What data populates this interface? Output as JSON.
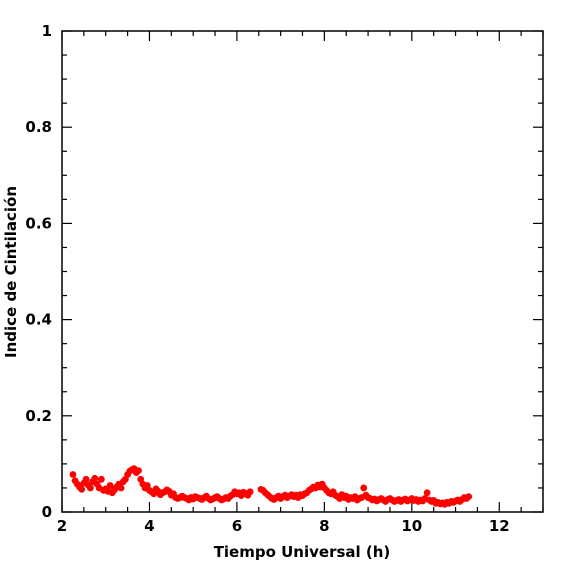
{
  "chart_data": {
    "type": "scatter",
    "xlabel": "Tiempo Universal (h)",
    "ylabel": "Indice de Cintilación",
    "xlim": [
      2,
      13
    ],
    "ylim": [
      0,
      1
    ],
    "x_ticks": [
      2,
      4,
      6,
      8,
      10,
      12
    ],
    "x_tick_labels": [
      "2",
      "4",
      "6",
      "8",
      "10",
      "12"
    ],
    "y_ticks": [
      0,
      0.2,
      0.4,
      0.6,
      0.8,
      1
    ],
    "y_tick_labels": [
      "0",
      "0.2",
      "0.4",
      "0.6",
      "0.8",
      "1"
    ],
    "grid": false,
    "marker_color": "#ff0000",
    "series": [
      {
        "x": [
          2.25,
          2.3,
          2.35,
          2.4,
          2.45,
          2.5,
          2.55,
          2.6,
          2.65,
          2.7,
          2.75,
          2.8,
          2.85,
          2.9,
          2.95,
          3.0,
          3.05,
          3.1,
          3.15,
          3.2,
          3.25,
          3.3,
          3.35,
          3.4,
          3.45,
          3.5,
          3.55,
          3.6,
          3.65,
          3.7,
          3.75,
          3.8,
          3.85,
          3.9,
          3.95,
          4.0,
          4.05,
          4.1,
          4.15,
          4.2,
          4.25,
          4.3,
          4.35,
          4.4,
          4.45,
          4.5,
          4.55,
          4.6,
          4.65,
          4.7,
          4.75,
          4.8,
          4.85,
          4.9,
          4.95,
          5.0,
          5.05,
          5.1,
          5.15,
          5.2,
          5.25,
          5.3,
          5.35,
          5.4,
          5.45,
          5.5,
          5.55,
          5.6,
          5.65,
          5.7,
          5.75,
          5.8,
          5.85,
          5.9,
          5.95,
          6.0,
          6.05,
          6.1,
          6.15,
          6.2,
          6.25,
          6.3,
          6.55,
          6.6,
          6.65,
          6.7,
          6.75,
          6.8,
          6.85,
          6.9,
          6.95,
          7.0,
          7.05,
          7.1,
          7.15,
          7.2,
          7.25,
          7.3,
          7.35,
          7.4,
          7.45,
          7.5,
          7.55,
          7.6,
          7.65,
          7.7,
          7.75,
          7.8,
          7.85,
          7.9,
          7.95,
          8.0,
          8.05,
          8.1,
          8.15,
          8.2,
          8.25,
          8.3,
          8.35,
          8.4,
          8.45,
          8.5,
          8.55,
          8.6,
          8.65,
          8.7,
          8.75,
          8.8,
          8.85,
          8.9,
          8.95,
          9.0,
          9.05,
          9.1,
          9.15,
          9.2,
          9.25,
          9.3,
          9.35,
          9.4,
          9.45,
          9.5,
          9.55,
          9.6,
          9.65,
          9.7,
          9.75,
          9.8,
          9.85,
          9.9,
          9.95,
          10.0,
          10.05,
          10.1,
          10.15,
          10.2,
          10.25,
          10.3,
          10.35,
          10.4,
          10.45,
          10.5,
          10.55,
          10.6,
          10.65,
          10.7,
          10.75,
          10.8,
          10.85,
          10.9,
          10.95,
          11.0,
          11.05,
          11.1,
          11.15,
          11.2,
          11.25,
          11.3
        ],
        "y": [
          0.078,
          0.065,
          0.058,
          0.052,
          0.047,
          0.06,
          0.068,
          0.056,
          0.05,
          0.063,
          0.07,
          0.058,
          0.05,
          0.068,
          0.045,
          0.048,
          0.043,
          0.055,
          0.04,
          0.046,
          0.052,
          0.058,
          0.05,
          0.063,
          0.068,
          0.078,
          0.085,
          0.088,
          0.09,
          0.082,
          0.086,
          0.068,
          0.058,
          0.05,
          0.055,
          0.045,
          0.042,
          0.038,
          0.048,
          0.043,
          0.036,
          0.04,
          0.042,
          0.046,
          0.043,
          0.035,
          0.038,
          0.03,
          0.028,
          0.03,
          0.033,
          0.03,
          0.028,
          0.025,
          0.03,
          0.027,
          0.032,
          0.03,
          0.028,
          0.026,
          0.03,
          0.033,
          0.028,
          0.025,
          0.027,
          0.03,
          0.032,
          0.028,
          0.025,
          0.027,
          0.03,
          0.028,
          0.033,
          0.036,
          0.042,
          0.038,
          0.04,
          0.034,
          0.041,
          0.038,
          0.035,
          0.042,
          0.047,
          0.045,
          0.04,
          0.036,
          0.032,
          0.028,
          0.026,
          0.03,
          0.033,
          0.028,
          0.032,
          0.035,
          0.03,
          0.033,
          0.036,
          0.032,
          0.035,
          0.03,
          0.036,
          0.034,
          0.038,
          0.04,
          0.045,
          0.048,
          0.052,
          0.05,
          0.056,
          0.052,
          0.058,
          0.05,
          0.045,
          0.04,
          0.038,
          0.042,
          0.035,
          0.032,
          0.028,
          0.036,
          0.03,
          0.033,
          0.026,
          0.03,
          0.028,
          0.032,
          0.025,
          0.028,
          0.03,
          0.05,
          0.035,
          0.03,
          0.028,
          0.025,
          0.027,
          0.023,
          0.026,
          0.028,
          0.025,
          0.022,
          0.026,
          0.028,
          0.025,
          0.022,
          0.024,
          0.026,
          0.022,
          0.025,
          0.027,
          0.023,
          0.025,
          0.028,
          0.024,
          0.026,
          0.022,
          0.025,
          0.023,
          0.028,
          0.04,
          0.025,
          0.022,
          0.024,
          0.018,
          0.02,
          0.017,
          0.019,
          0.016,
          0.02,
          0.018,
          0.022,
          0.02,
          0.023,
          0.025,
          0.022,
          0.026,
          0.03,
          0.028,
          0.032
        ]
      }
    ]
  }
}
